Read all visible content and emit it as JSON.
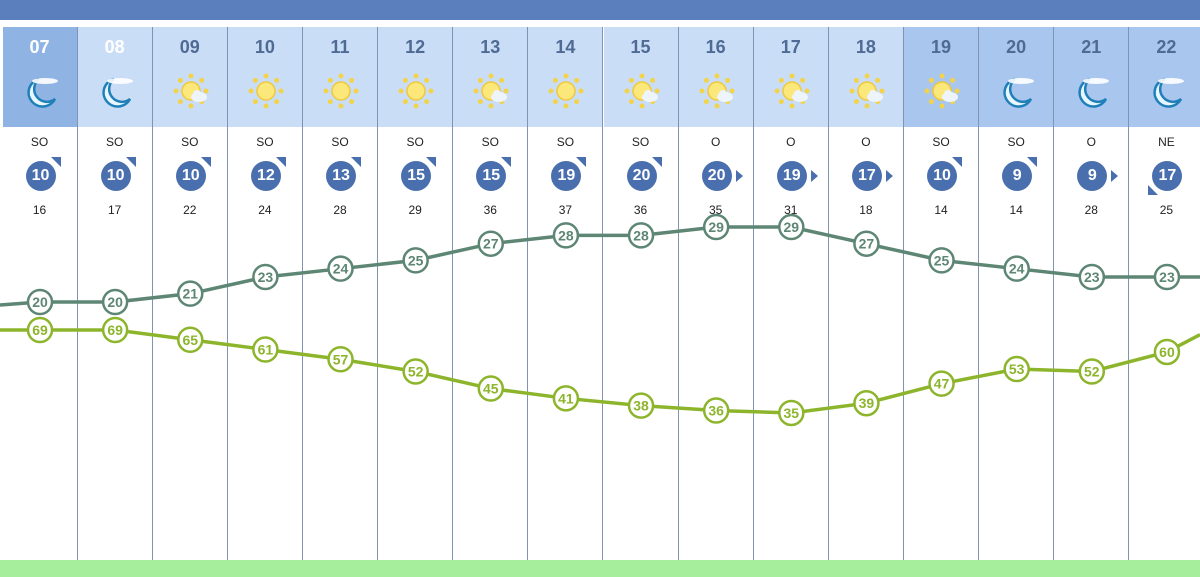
{
  "chart_data": {
    "type": "line",
    "categories": [
      "07",
      "08",
      "09",
      "10",
      "11",
      "12",
      "13",
      "14",
      "15",
      "16",
      "17",
      "18",
      "19",
      "20",
      "21",
      "22"
    ],
    "series": [
      {
        "values": [
          20,
          20,
          21,
          23,
          24,
          25,
          27,
          28,
          28,
          29,
          29,
          27,
          25,
          24,
          23,
          23
        ],
        "color": "#5e8675"
      },
      {
        "values": [
          69,
          69,
          65,
          61,
          57,
          52,
          45,
          41,
          38,
          36,
          35,
          39,
          47,
          53,
          52,
          60
        ],
        "color": "#8db52c"
      }
    ],
    "grid": "vertical"
  },
  "hours": [
    {
      "h": "07",
      "icon": "moon-cloud-icon",
      "style": "now",
      "dir": "SO",
      "wind": 10,
      "gust": 16,
      "arrow": "ne"
    },
    {
      "h": "08",
      "icon": "moon-cloud-icon",
      "style": "day-light",
      "dir": "SO",
      "wind": 10,
      "gust": 17,
      "arrow": "ne"
    },
    {
      "h": "09",
      "icon": "sun-cloud-icon",
      "style": "day",
      "dir": "SO",
      "wind": 10,
      "gust": 22,
      "arrow": "ne"
    },
    {
      "h": "10",
      "icon": "sun-icon",
      "style": "day",
      "dir": "SO",
      "wind": 12,
      "gust": 24,
      "arrow": "ne"
    },
    {
      "h": "11",
      "icon": "sun-icon",
      "style": "day",
      "dir": "SO",
      "wind": 13,
      "gust": 28,
      "arrow": "ne"
    },
    {
      "h": "12",
      "icon": "sun-icon",
      "style": "day",
      "dir": "SO",
      "wind": 15,
      "gust": 29,
      "arrow": "ne"
    },
    {
      "h": "13",
      "icon": "sun-cloud-icon",
      "style": "day",
      "dir": "SO",
      "wind": 15,
      "gust": 36,
      "arrow": "ne"
    },
    {
      "h": "14",
      "icon": "sun-icon",
      "style": "day",
      "dir": "SO",
      "wind": 19,
      "gust": 37,
      "arrow": "ne"
    },
    {
      "h": "15",
      "icon": "sun-cloud-icon",
      "style": "day",
      "dir": "SO",
      "wind": 20,
      "gust": 36,
      "arrow": "ne"
    },
    {
      "h": "16",
      "icon": "sun-cloud-icon",
      "style": "day",
      "dir": "O",
      "wind": 20,
      "gust": 35,
      "arrow": "e"
    },
    {
      "h": "17",
      "icon": "sun-cloud-icon",
      "style": "day",
      "dir": "O",
      "wind": 19,
      "gust": 31,
      "arrow": "e"
    },
    {
      "h": "18",
      "icon": "sun-cloud-icon",
      "style": "day",
      "dir": "O",
      "wind": 17,
      "gust": 18,
      "arrow": "e"
    },
    {
      "h": "19",
      "icon": "sun-cloud-icon",
      "style": "night",
      "dir": "SO",
      "wind": 10,
      "gust": 14,
      "arrow": "ne"
    },
    {
      "h": "20",
      "icon": "moon-cloud-icon",
      "style": "night",
      "dir": "SO",
      "wind": 9,
      "gust": 14,
      "arrow": "ne"
    },
    {
      "h": "21",
      "icon": "moon-cloud-icon",
      "style": "night",
      "dir": "O",
      "wind": 9,
      "gust": 28,
      "arrow": "e"
    },
    {
      "h": "22",
      "icon": "moon-cloud-icon",
      "style": "night",
      "dir": "NE",
      "wind": 17,
      "gust": 25,
      "arrow": "sw"
    }
  ]
}
